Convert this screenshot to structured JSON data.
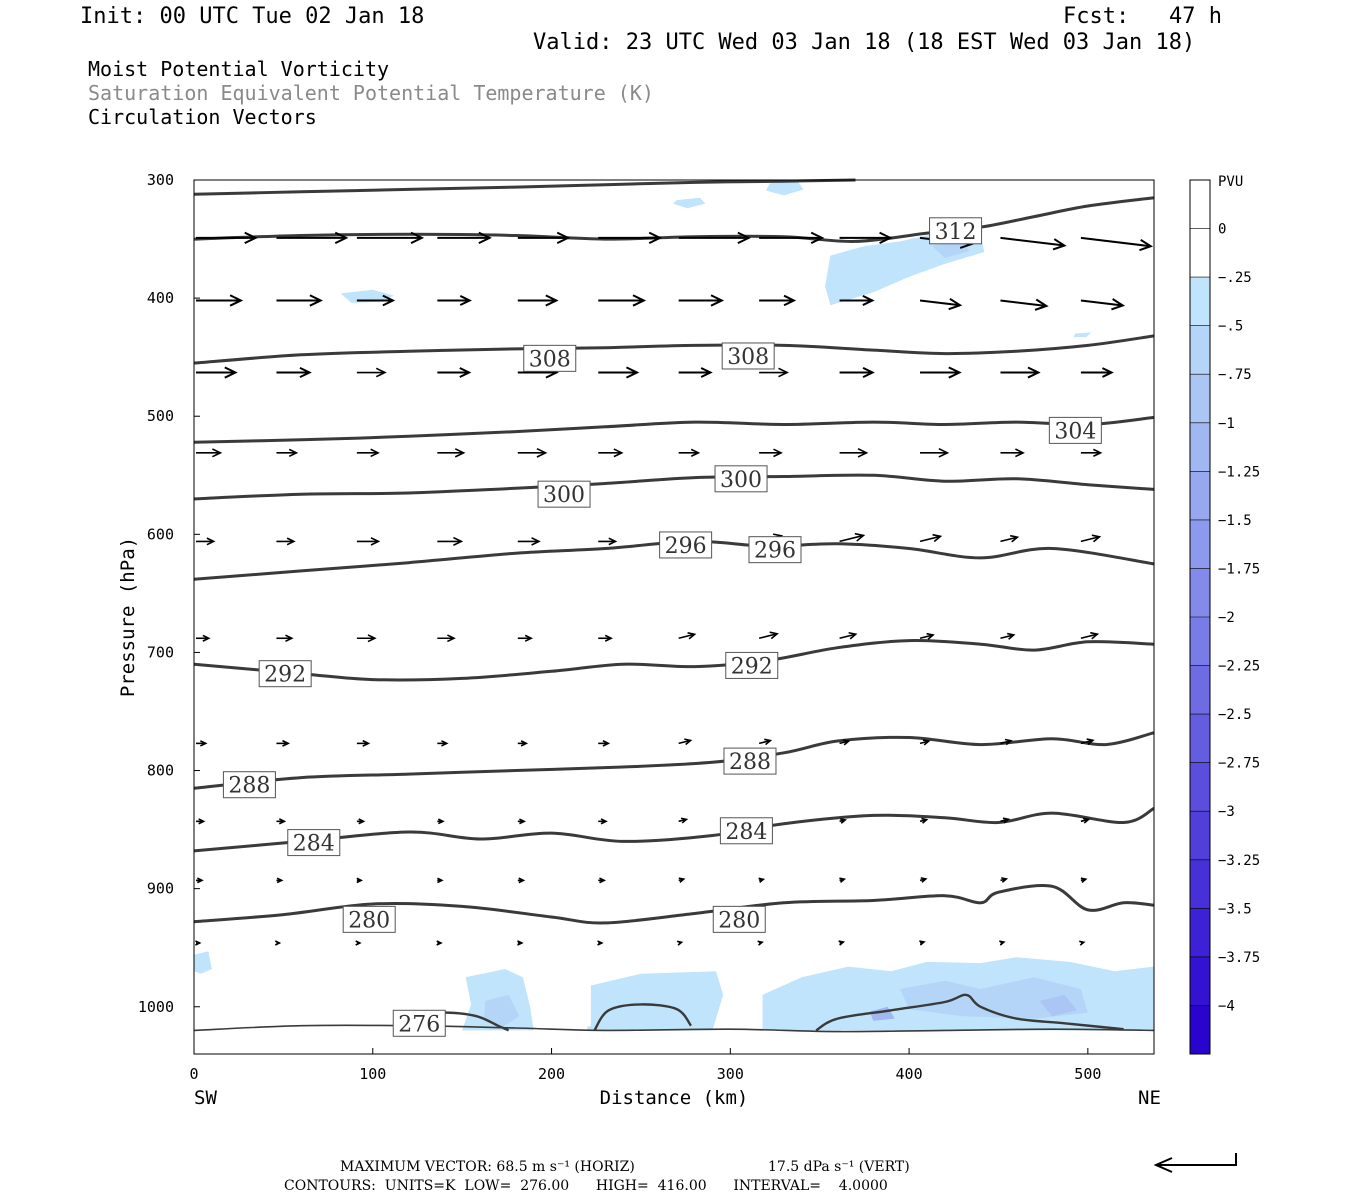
{
  "header": {
    "init": "Init: 00 UTC Tue 02 Jan 18",
    "fcst": "Fcst:   47 h",
    "valid": "Valid: 23 UTC Wed 03 Jan 18 (18 EST Wed 03 Jan 18)",
    "field1": "Moist Potential Vorticity",
    "field2": "Saturation Equivalent Potential Temperature (K)",
    "field3": "Circulation Vectors"
  },
  "footer": {
    "line1_left": "MAXIMUM VECTOR:  68.5 m s⁻¹ (HORIZ)",
    "line1_right": "17.5 dPa s⁻¹ (VERT)",
    "line2": "CONTOURS:  UNITS=K  LOW=  276.00      HIGH=  416.00      INTERVAL=    4.0000"
  },
  "chart_data": {
    "type": "cross-section",
    "xlabel": "Distance (km)",
    "ylabel": "Pressure (hPa)",
    "x_left_label": "SW",
    "x_right_label": "NE",
    "xlim": [
      0,
      537
    ],
    "ylim": [
      1040,
      300
    ],
    "x_ticks": [
      0,
      100,
      200,
      300,
      400,
      500
    ],
    "y_ticks": [
      300,
      400,
      500,
      600,
      700,
      800,
      900,
      1000
    ],
    "colorbar": {
      "unit": "PVU",
      "levels": [
        "0",
        "-.25",
        "-.5",
        "-.75",
        "-1",
        "-1.25",
        "-1.5",
        "-1.75",
        "-2",
        "-2.25",
        "-2.5",
        "-2.75",
        "-3",
        "-3.25",
        "-3.5",
        "-3.75",
        "-4"
      ],
      "colors": [
        "#ffffff",
        "#ffffff",
        "#bfe4fb",
        "#b5d5f8",
        "#abc6f5",
        "#a1b7f2",
        "#97a8ef",
        "#8d99ec",
        "#838ae9",
        "#797be6",
        "#6f6ce3",
        "#655de0",
        "#5b4edd",
        "#513fda",
        "#4730d7",
        "#3d21d4",
        "#3312d1",
        "#2903ce"
      ]
    },
    "contours": [
      {
        "value": 276,
        "label": "276",
        "label_at": [
          126,
          1014
        ],
        "points": [
          [
            0,
            1020
          ],
          [
            60,
            1016
          ],
          [
            120,
            1016
          ],
          [
            180,
            1018
          ],
          [
            230,
            1020
          ],
          [
            300,
            1019
          ],
          [
            360,
            1021
          ],
          [
            420,
            1020
          ],
          [
            480,
            1019
          ],
          [
            537,
            1020
          ]
        ]
      },
      {
        "value": 280,
        "label": "280",
        "label_at": [
          98,
          926
        ],
        "label2": "280",
        "label2_at": [
          305,
          926
        ],
        "points": [
          [
            0,
            928
          ],
          [
            50,
            922
          ],
          [
            100,
            913
          ],
          [
            150,
            915
          ],
          [
            200,
            924
          ],
          [
            230,
            929
          ],
          [
            280,
            921
          ],
          [
            330,
            912
          ],
          [
            380,
            910
          ],
          [
            420,
            906
          ],
          [
            440,
            912
          ],
          [
            450,
            903
          ],
          [
            480,
            898
          ],
          [
            500,
            918
          ],
          [
            520,
            912
          ],
          [
            537,
            914
          ]
        ]
      },
      {
        "value": 284,
        "label": "284",
        "label_at": [
          67,
          861
        ],
        "label2": "284",
        "label2_at": [
          309,
          851
        ],
        "points": [
          [
            0,
            868
          ],
          [
            60,
            860
          ],
          [
            120,
            852
          ],
          [
            160,
            858
          ],
          [
            200,
            853
          ],
          [
            240,
            860
          ],
          [
            290,
            855
          ],
          [
            330,
            845
          ],
          [
            380,
            838
          ],
          [
            420,
            840
          ],
          [
            450,
            844
          ],
          [
            480,
            836
          ],
          [
            520,
            844
          ],
          [
            537,
            832
          ]
        ]
      },
      {
        "value": 288,
        "label": "288",
        "label_at": [
          31,
          812
        ],
        "label2": "288",
        "label2_at": [
          311,
          792
        ],
        "points": [
          [
            0,
            815
          ],
          [
            60,
            806
          ],
          [
            120,
            803
          ],
          [
            180,
            800
          ],
          [
            240,
            797
          ],
          [
            290,
            793
          ],
          [
            330,
            785
          ],
          [
            360,
            775
          ],
          [
            400,
            772
          ],
          [
            440,
            778
          ],
          [
            480,
            773
          ],
          [
            510,
            778
          ],
          [
            537,
            768
          ]
        ]
      },
      {
        "value": 292,
        "label": "292",
        "label_at": [
          51,
          718
        ],
        "label2": "292",
        "label2_at": [
          312,
          711
        ],
        "points": [
          [
            0,
            710
          ],
          [
            60,
            718
          ],
          [
            100,
            723
          ],
          [
            150,
            722
          ],
          [
            200,
            716
          ],
          [
            240,
            710
          ],
          [
            280,
            712
          ],
          [
            320,
            707
          ],
          [
            360,
            696
          ],
          [
            400,
            690
          ],
          [
            440,
            693
          ],
          [
            470,
            698
          ],
          [
            500,
            691
          ],
          [
            537,
            693
          ]
        ]
      },
      {
        "value": 296,
        "label": "296",
        "label_at": [
          275,
          609
        ],
        "label2": "296",
        "label2_at": [
          325,
          613
        ],
        "points": [
          [
            0,
            638
          ],
          [
            60,
            631
          ],
          [
            120,
            624
          ],
          [
            180,
            616
          ],
          [
            230,
            612
          ],
          [
            280,
            606
          ],
          [
            320,
            610
          ],
          [
            360,
            608
          ],
          [
            400,
            612
          ],
          [
            440,
            620
          ],
          [
            480,
            612
          ],
          [
            537,
            625
          ]
        ]
      },
      {
        "value": 300,
        "label": "300",
        "label_at": [
          207,
          566
        ],
        "label2": "300",
        "label2_at": [
          306,
          553
        ],
        "points": [
          [
            0,
            570
          ],
          [
            60,
            566
          ],
          [
            120,
            565
          ],
          [
            180,
            561
          ],
          [
            230,
            557
          ],
          [
            280,
            552
          ],
          [
            330,
            551
          ],
          [
            380,
            550
          ],
          [
            420,
            555
          ],
          [
            460,
            553
          ],
          [
            500,
            558
          ],
          [
            537,
            562
          ]
        ]
      },
      {
        "value": 304,
        "label": "304",
        "label_at": [
          493,
          512
        ],
        "points": [
          [
            0,
            522
          ],
          [
            60,
            520
          ],
          [
            120,
            517
          ],
          [
            180,
            513
          ],
          [
            230,
            509
          ],
          [
            280,
            505
          ],
          [
            330,
            507
          ],
          [
            380,
            505
          ],
          [
            420,
            507
          ],
          [
            460,
            505
          ],
          [
            500,
            507
          ],
          [
            537,
            501
          ]
        ]
      },
      {
        "value": 308,
        "label": "308",
        "label_at": [
          199,
          451
        ],
        "label2": "308",
        "label2_at": [
          310,
          449
        ],
        "points": [
          [
            0,
            455
          ],
          [
            60,
            448
          ],
          [
            120,
            445
          ],
          [
            180,
            443
          ],
          [
            230,
            442
          ],
          [
            280,
            440
          ],
          [
            330,
            440
          ],
          [
            380,
            444
          ],
          [
            420,
            447
          ],
          [
            460,
            445
          ],
          [
            500,
            440
          ],
          [
            537,
            432
          ]
        ]
      },
      {
        "value": 312,
        "label": "312",
        "label_at": [
          426,
          343
        ],
        "points": [
          [
            0,
            350
          ],
          [
            60,
            347
          ],
          [
            120,
            346
          ],
          [
            180,
            347
          ],
          [
            230,
            350
          ],
          [
            280,
            348
          ],
          [
            330,
            348
          ],
          [
            370,
            352
          ],
          [
            410,
            345
          ],
          [
            440,
            340
          ],
          [
            470,
            331
          ],
          [
            500,
            322
          ],
          [
            537,
            315
          ]
        ]
      },
      {
        "value": 316,
        "label": "",
        "points": [
          [
            0,
            312
          ],
          [
            60,
            310
          ],
          [
            120,
            308
          ],
          [
            180,
            306
          ],
          [
            230,
            304
          ],
          [
            280,
            302
          ],
          [
            330,
            301
          ],
          [
            370,
            300
          ]
        ]
      }
    ],
    "pv_regions": [
      {
        "level": "-.25",
        "points": [
          [
            270,
            317
          ],
          [
            283,
            315
          ],
          [
            286,
            320
          ],
          [
            276,
            324
          ],
          [
            268,
            320
          ]
        ]
      },
      {
        "level": "-.25",
        "points": [
          [
            322,
            303
          ],
          [
            337,
            300
          ],
          [
            341,
            308
          ],
          [
            330,
            313
          ],
          [
            320,
            309
          ]
        ]
      },
      {
        "level": "-.25",
        "points": [
          [
            82,
            396
          ],
          [
            100,
            393
          ],
          [
            112,
            398
          ],
          [
            104,
            403
          ],
          [
            88,
            404
          ]
        ]
      },
      {
        "level": "-.25",
        "points": [
          [
            356,
            364
          ],
          [
            375,
            356
          ],
          [
            395,
            352
          ],
          [
            418,
            344
          ],
          [
            440,
            346
          ],
          [
            442,
            361
          ],
          [
            420,
            371
          ],
          [
            400,
            382
          ],
          [
            380,
            395
          ],
          [
            356,
            406
          ],
          [
            353,
            390
          ]
        ]
      },
      {
        "level": "-.5",
        "points": [
          [
            413,
            356
          ],
          [
            428,
            350
          ],
          [
            434,
            360
          ],
          [
            420,
            366
          ]
        ]
      },
      {
        "level": "-.25",
        "points": [
          [
            493,
            430
          ],
          [
            502,
            429
          ],
          [
            499,
            433
          ],
          [
            492,
            433
          ]
        ]
      },
      {
        "level": "-.25",
        "points": [
          [
            0,
            956
          ],
          [
            8,
            953
          ],
          [
            10,
            968
          ],
          [
            4,
            972
          ],
          [
            0,
            970
          ]
        ]
      },
      {
        "level": "-.25",
        "points": [
          [
            152,
            975
          ],
          [
            174,
            968
          ],
          [
            184,
            975
          ],
          [
            188,
            1000
          ],
          [
            190,
            1020
          ],
          [
            150,
            1020
          ],
          [
            155,
            998
          ]
        ]
      },
      {
        "level": "-.5",
        "points": [
          [
            163,
            995
          ],
          [
            176,
            990
          ],
          [
            182,
            1008
          ],
          [
            172,
            1018
          ],
          [
            162,
            1012
          ]
        ]
      },
      {
        "level": "-.25",
        "points": [
          [
            222,
            982
          ],
          [
            250,
            972
          ],
          [
            292,
            970
          ],
          [
            296,
            990
          ],
          [
            290,
            1020
          ],
          [
            222,
            1020
          ]
        ]
      },
      {
        "level": "-.25",
        "points": [
          [
            318,
            990
          ],
          [
            340,
            975
          ],
          [
            366,
            966
          ],
          [
            390,
            970
          ],
          [
            410,
            962
          ],
          [
            440,
            963
          ],
          [
            460,
            958
          ],
          [
            490,
            962
          ],
          [
            515,
            970
          ],
          [
            537,
            966
          ],
          [
            537,
            1020
          ],
          [
            318,
            1020
          ]
        ]
      },
      {
        "level": "-.5",
        "points": [
          [
            395,
            985
          ],
          [
            420,
            978
          ],
          [
            440,
            985
          ],
          [
            470,
            975
          ],
          [
            496,
            985
          ],
          [
            500,
            1005
          ],
          [
            470,
            1010
          ],
          [
            430,
            1008
          ],
          [
            400,
            1002
          ]
        ]
      },
      {
        "level": "-.75",
        "points": [
          [
            473,
            995
          ],
          [
            487,
            990
          ],
          [
            494,
            1003
          ],
          [
            480,
            1008
          ]
        ]
      },
      {
        "level": "-1",
        "points": [
          [
            378,
            1004
          ],
          [
            388,
            1000
          ],
          [
            392,
            1010
          ],
          [
            380,
            1012
          ]
        ]
      },
      {
        "level": "-.25",
        "points": [
          [
            220,
            1017
          ],
          [
            226,
            1015
          ],
          [
            227,
            1020
          ],
          [
            220,
            1020
          ]
        ]
      }
    ],
    "vectors_note": "circulation vectors drawn on grid; lengths in arbitrary units relative to maximum vector"
  }
}
